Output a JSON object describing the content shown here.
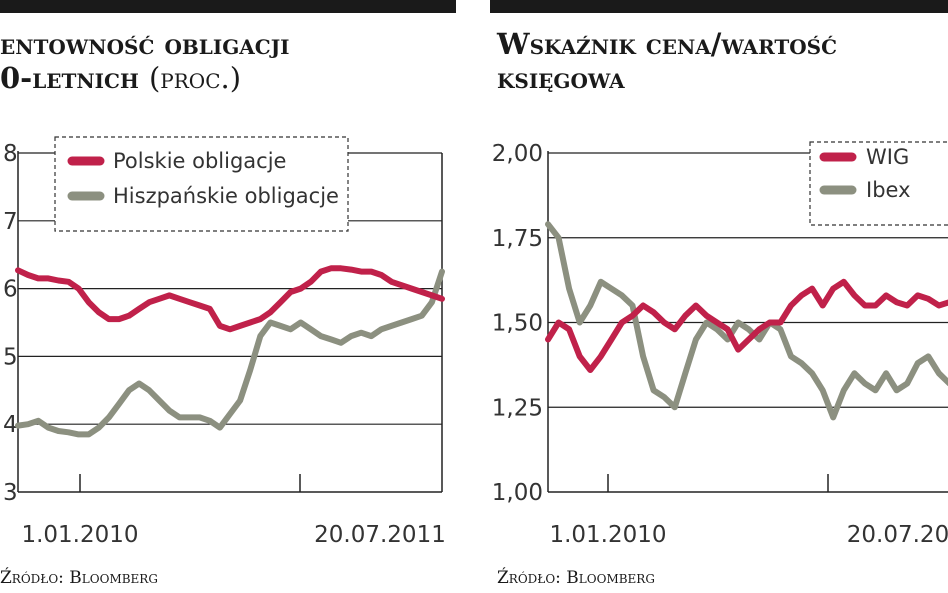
{
  "chart_data": [
    {
      "type": "line",
      "title": "entowność obligacji",
      "title_line2_main": "0-letnich",
      "title_line2_suffix": "(proc.)",
      "source": "Źródło: Bloomberg",
      "x_labels": [
        "1.01.2010",
        "20.07.2011"
      ],
      "y_ticks": [
        "3",
        "4",
        "5",
        "6",
        "7",
        "8"
      ],
      "ylim": [
        3,
        8
      ],
      "grid": true,
      "legend_position": "top",
      "series": [
        {
          "name": "Polskie obligacje",
          "color": "#c0214a",
          "values": [
            6.27,
            6.2,
            6.15,
            6.15,
            6.12,
            6.1,
            6.0,
            5.8,
            5.65,
            5.55,
            5.55,
            5.6,
            5.7,
            5.8,
            5.85,
            5.9,
            5.85,
            5.8,
            5.75,
            5.7,
            5.45,
            5.4,
            5.45,
            5.5,
            5.55,
            5.65,
            5.8,
            5.95,
            6.0,
            6.1,
            6.25,
            6.3,
            6.3,
            6.28,
            6.25,
            6.25,
            6.2,
            6.1,
            6.05,
            6.0,
            5.95,
            5.9,
            5.85
          ]
        },
        {
          "name": "Hiszpańskie obligacje",
          "color": "#8c9080",
          "values": [
            3.98,
            4.0,
            4.05,
            3.95,
            3.9,
            3.88,
            3.85,
            3.85,
            3.95,
            4.1,
            4.3,
            4.5,
            4.6,
            4.5,
            4.35,
            4.2,
            4.1,
            4.1,
            4.1,
            4.05,
            3.95,
            4.15,
            4.35,
            4.8,
            5.3,
            5.5,
            5.45,
            5.4,
            5.5,
            5.4,
            5.3,
            5.25,
            5.2,
            5.3,
            5.35,
            5.3,
            5.4,
            5.45,
            5.5,
            5.55,
            5.6,
            5.8,
            6.25
          ]
        }
      ]
    },
    {
      "type": "line",
      "title": "Wskaźnik cena/wartość",
      "title_line2_main": "księgowa",
      "title_line2_suffix": "",
      "source": "Źródło: Bloomberg",
      "x_labels": [
        "1.01.2010",
        "20.07.20"
      ],
      "y_ticks": [
        "1,00",
        "1,25",
        "1,50",
        "1,75",
        "2,00"
      ],
      "ylim": [
        1.0,
        2.0
      ],
      "grid": true,
      "legend_position": "top-right",
      "series": [
        {
          "name": "WIG",
          "color": "#c0214a",
          "values": [
            1.45,
            1.5,
            1.48,
            1.4,
            1.36,
            1.4,
            1.45,
            1.5,
            1.52,
            1.55,
            1.53,
            1.5,
            1.48,
            1.52,
            1.55,
            1.52,
            1.5,
            1.48,
            1.42,
            1.45,
            1.48,
            1.5,
            1.5,
            1.55,
            1.58,
            1.6,
            1.55,
            1.6,
            1.62,
            1.58,
            1.55,
            1.55,
            1.58,
            1.56,
            1.55,
            1.58,
            1.57,
            1.55,
            1.56,
            1.54
          ]
        },
        {
          "name": "Ibex",
          "color": "#8c9080",
          "values": [
            1.79,
            1.75,
            1.6,
            1.5,
            1.55,
            1.62,
            1.6,
            1.58,
            1.55,
            1.4,
            1.3,
            1.28,
            1.25,
            1.35,
            1.45,
            1.5,
            1.48,
            1.45,
            1.5,
            1.48,
            1.45,
            1.5,
            1.48,
            1.4,
            1.38,
            1.35,
            1.3,
            1.22,
            1.3,
            1.35,
            1.32,
            1.3,
            1.35,
            1.3,
            1.32,
            1.38,
            1.4,
            1.35,
            1.32,
            1.3
          ]
        }
      ]
    }
  ]
}
